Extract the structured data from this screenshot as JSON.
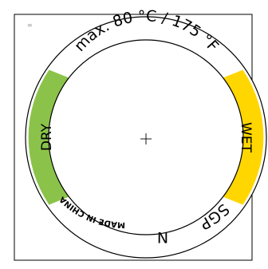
{
  "label": {
    "temperature": "max. 80 °C / 175 °F",
    "dry": "DRY",
    "wet": "WET",
    "code": "SGP",
    "letter": "N",
    "origin": "MADE IN CHINA",
    "corner_mark": "="
  },
  "colors": {
    "dry": "#8bc34a",
    "wet": "#ffd600",
    "outline": "#000000",
    "background": "#ffffff"
  }
}
